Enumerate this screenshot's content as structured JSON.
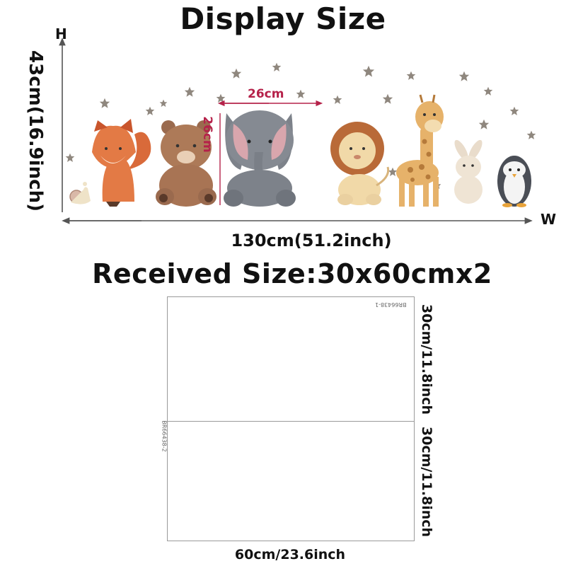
{
  "title": "Display Size",
  "axes": {
    "h_marker": "H",
    "w_marker": "W"
  },
  "display": {
    "height_label": "43cm(16.9inch)",
    "width_label": "130cm(51.2inch)",
    "elephant_width": "26cm",
    "elephant_height": "26cm"
  },
  "received": {
    "label": "Received Size:30x60cmx2",
    "sheet1_code": "BR66438-1",
    "sheet2_code": "BR66438-2",
    "sheet1_height": "30cm/11.8inch",
    "sheet2_height": "30cm/11.8inch",
    "width": "60cm/23.6inch"
  },
  "icons": [
    "fox-icon",
    "bear-icon",
    "elephant-icon",
    "lion-icon",
    "giraffe-icon",
    "rabbit-icon",
    "penguin-icon",
    "snail-icon",
    "moon-icon",
    "star-icon"
  ],
  "colors": {
    "accent_dimension": "#b5224a",
    "sheet_border": "#9a9a9a"
  }
}
